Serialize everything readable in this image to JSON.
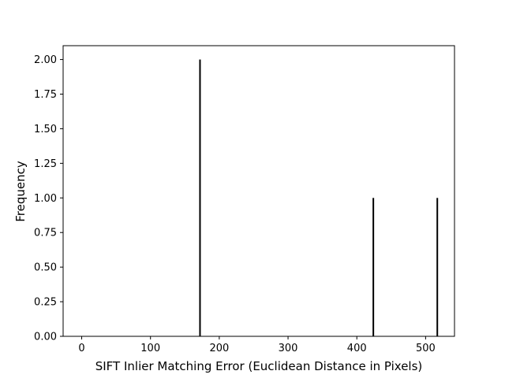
{
  "chart_data": {
    "type": "bar",
    "title": "",
    "xlabel": "SIFT Inlier Matching Error (Euclidean Distance in Pixels)",
    "ylabel": "Frequency",
    "xlim": [
      -27,
      542
    ],
    "ylim": [
      0,
      2.1
    ],
    "xticks": [
      0,
      100,
      200,
      300,
      400,
      500
    ],
    "yticks": [
      0.0,
      0.25,
      0.5,
      0.75,
      1.0,
      1.25,
      1.5,
      1.75,
      2.0
    ],
    "ytick_labels": [
      "0.00",
      "0.25",
      "0.50",
      "0.75",
      "1.00",
      "1.25",
      "1.50",
      "1.75",
      "2.00"
    ],
    "bar_color": "#000000",
    "grid": false,
    "bars": [
      {
        "x": 172,
        "value": 2
      },
      {
        "x": 424,
        "value": 1
      },
      {
        "x": 517,
        "value": 1
      }
    ]
  }
}
